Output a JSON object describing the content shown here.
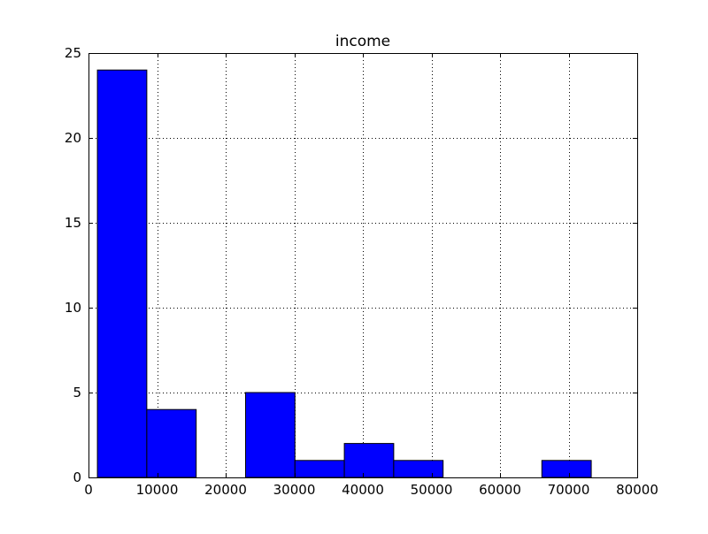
{
  "chart_data": {
    "type": "bar",
    "subtype": "histogram",
    "title": "income",
    "xlabel": "",
    "ylabel": "",
    "xlim": [
      0,
      80000
    ],
    "ylim": [
      0,
      25
    ],
    "xticks": [
      0,
      10000,
      20000,
      30000,
      40000,
      50000,
      60000,
      70000,
      80000
    ],
    "yticks": [
      0,
      5,
      10,
      15,
      20,
      25
    ],
    "grid": true,
    "bar_color": "#0000ff",
    "bar_edge_color": "#000000",
    "bins": [
      {
        "x0": 1300,
        "x1": 8500,
        "count": 24
      },
      {
        "x0": 8500,
        "x1": 15700,
        "count": 4
      },
      {
        "x0": 15700,
        "x1": 22900,
        "count": 0
      },
      {
        "x0": 22900,
        "x1": 30100,
        "count": 5
      },
      {
        "x0": 30100,
        "x1": 37300,
        "count": 1
      },
      {
        "x0": 37300,
        "x1": 44500,
        "count": 2
      },
      {
        "x0": 44500,
        "x1": 51700,
        "count": 1
      },
      {
        "x0": 51700,
        "x1": 58900,
        "count": 0
      },
      {
        "x0": 58900,
        "x1": 66100,
        "count": 0
      },
      {
        "x0": 66100,
        "x1": 73300,
        "count": 1
      }
    ]
  }
}
